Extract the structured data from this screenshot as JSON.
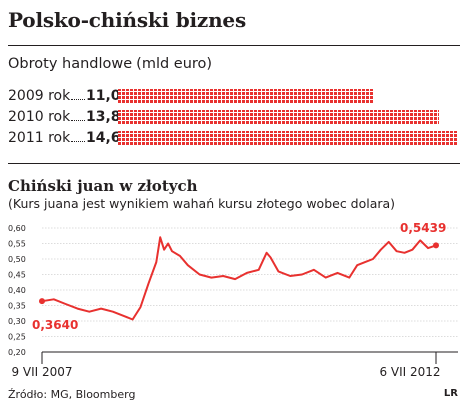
{
  "header": {
    "title": "Polsko-chiński biznes"
  },
  "trade": {
    "heading": "Obroty handlowe",
    "unit": "(mld euro)",
    "rows": [
      {
        "year": "2009 rok",
        "value_label": "11,0"
      },
      {
        "year": "2010 rok",
        "value_label": "13,8"
      },
      {
        "year": "2011 rok",
        "value_label": "14,6"
      }
    ]
  },
  "yuan": {
    "title": "Chiński juan w złotych",
    "subtitle": "(Kurs juana jest wynikiem wahań kursu złotego wobec dolara)",
    "start_label": "0,3640",
    "end_label": "0,5439"
  },
  "footer": {
    "source": "Źródło: MG, Bloomberg",
    "logo": "LR"
  },
  "colors": {
    "accent": "#e8312f",
    "text": "#231f20",
    "grid": "#b9b9b9"
  },
  "chart_data": [
    {
      "type": "bar",
      "orientation": "horizontal",
      "title": "Obroty handlowe (mld euro)",
      "categories": [
        "2009 rok",
        "2010 rok",
        "2011 rok"
      ],
      "values": [
        11.0,
        13.8,
        14.6
      ]
    },
    {
      "type": "line",
      "title": "Chiński juan w złotych",
      "subtitle": "(Kurs juana jest wynikiem wahań kursu złotego wobec dolara)",
      "x_tick_labels": [
        "9 VII 2007",
        "6 VII 2012"
      ],
      "x": [
        0,
        0.03,
        0.06,
        0.09,
        0.12,
        0.15,
        0.18,
        0.21,
        0.23,
        0.25,
        0.27,
        0.29,
        0.3,
        0.31,
        0.32,
        0.33,
        0.35,
        0.37,
        0.4,
        0.43,
        0.46,
        0.49,
        0.52,
        0.55,
        0.57,
        0.58,
        0.6,
        0.63,
        0.66,
        0.69,
        0.72,
        0.75,
        0.78,
        0.8,
        0.82,
        0.84,
        0.86,
        0.88,
        0.9,
        0.92,
        0.94,
        0.96,
        0.98,
        1.0
      ],
      "y": [
        0.364,
        0.37,
        0.355,
        0.34,
        0.33,
        0.34,
        0.33,
        0.315,
        0.305,
        0.345,
        0.42,
        0.49,
        0.57,
        0.53,
        0.55,
        0.525,
        0.51,
        0.48,
        0.45,
        0.44,
        0.445,
        0.435,
        0.455,
        0.465,
        0.52,
        0.505,
        0.46,
        0.445,
        0.45,
        0.465,
        0.44,
        0.455,
        0.44,
        0.48,
        0.49,
        0.5,
        0.53,
        0.555,
        0.525,
        0.52,
        0.53,
        0.56,
        0.535,
        0.5439
      ],
      "y_tick_labels": [
        "0,20",
        "0,25",
        "0,30",
        "0,35",
        "0,40",
        "0,45",
        "0,50",
        "0,55",
        "0,60"
      ],
      "yticks": [
        0.2,
        0.25,
        0.3,
        0.35,
        0.4,
        0.45,
        0.5,
        0.55,
        0.6
      ],
      "ylim": [
        0.2,
        0.6
      ],
      "grid": true,
      "annotations": [
        {
          "text": "0,3640",
          "x": 0.0,
          "y": 0.364
        },
        {
          "text": "0,5439",
          "x": 1.0,
          "y": 0.5439
        }
      ]
    }
  ]
}
